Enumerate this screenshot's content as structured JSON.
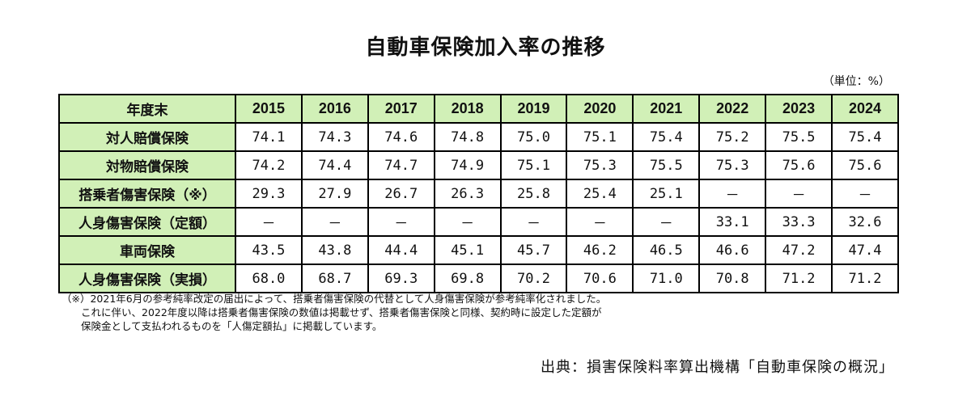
{
  "title": "自動車保険加入率の推移",
  "unit": "（単位：%）",
  "table": {
    "header_label": "年度末",
    "years": [
      "2015",
      "2016",
      "2017",
      "2018",
      "2019",
      "2020",
      "2021",
      "2022",
      "2023",
      "2024"
    ],
    "rows": [
      {
        "label": "対人賠償保険",
        "values": [
          "74.1",
          "74.3",
          "74.6",
          "74.8",
          "75.0",
          "75.1",
          "75.4",
          "75.2",
          "75.5",
          "75.4"
        ]
      },
      {
        "label": "対物賠償保険",
        "values": [
          "74.2",
          "74.4",
          "74.7",
          "74.9",
          "75.1",
          "75.3",
          "75.5",
          "75.3",
          "75.6",
          "75.6"
        ]
      },
      {
        "label": "搭乗者傷害保険（※）",
        "values": [
          "29.3",
          "27.9",
          "26.7",
          "26.3",
          "25.8",
          "25.4",
          "25.1",
          "－",
          "－",
          "－"
        ]
      },
      {
        "label": "人身傷害保険（定額）",
        "values": [
          "－",
          "－",
          "－",
          "－",
          "－",
          "－",
          "－",
          "33.1",
          "33.3",
          "32.6"
        ]
      },
      {
        "label": "車両保険",
        "values": [
          "43.5",
          "43.8",
          "44.4",
          "45.1",
          "45.7",
          "46.2",
          "46.5",
          "46.6",
          "47.2",
          "47.4"
        ]
      },
      {
        "label": "人身傷害保険（実損）",
        "values": [
          "68.0",
          "68.7",
          "69.3",
          "69.8",
          "70.2",
          "70.6",
          "71.0",
          "70.8",
          "71.2",
          "71.2"
        ]
      }
    ]
  },
  "notes": [
    "（※）2021年6月の参考純率改定の届出によって、搭乗者傷害保険の代替として人身傷害保険が参考純率化されました。",
    "これに伴い、2022年度以降は搭乗者傷害保険の数値は掲載せず、搭乗者傷害保険と同様、契約時に設定した定額が",
    "保険金として支払われるものを「人傷定額払」に掲載しています。"
  ],
  "source": "出典：損害保険料率算出機構「自動車保険の概況」"
}
